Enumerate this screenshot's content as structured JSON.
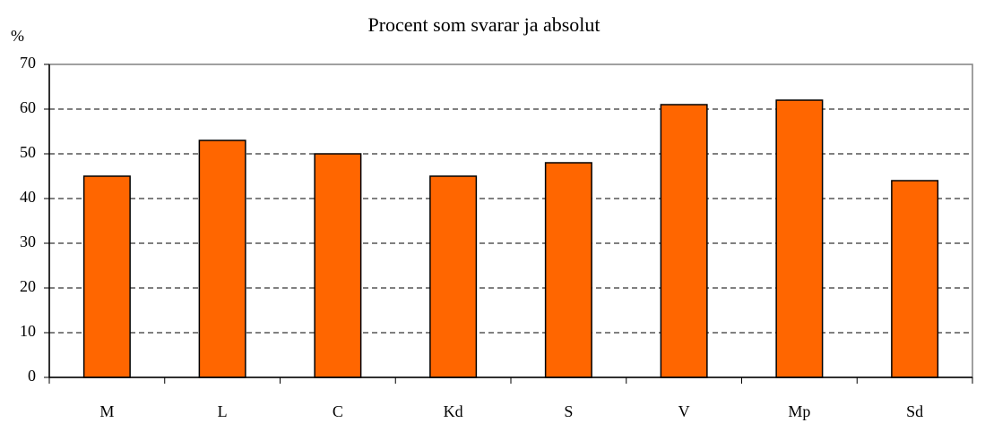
{
  "chart_data": {
    "type": "bar",
    "subtitle": "Procent som svarar ja absolut",
    "y_label": "%",
    "categories": [
      "M",
      "L",
      "C",
      "Kd",
      "S",
      "V",
      "Mp",
      "Sd"
    ],
    "values": [
      45,
      53,
      50,
      45,
      48,
      61,
      62,
      44
    ],
    "color": "#ff6600",
    "ylim": [
      0,
      70
    ],
    "yticks": [
      0,
      10,
      20,
      30,
      40,
      50,
      60,
      70
    ],
    "grid": true
  }
}
